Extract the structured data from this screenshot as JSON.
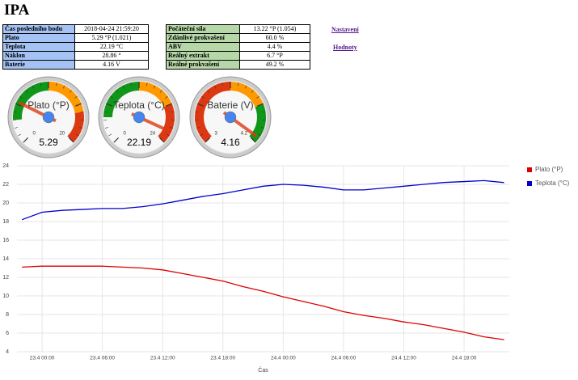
{
  "header": {
    "title": "IPA"
  },
  "tables": [
    {
      "rows": [
        [
          "Čas posledního bodu",
          "2018-04-24 21:59:20"
        ],
        [
          "Plato",
          "5.29 °P (1.021)"
        ],
        [
          "Teplota",
          "22.19 °C"
        ],
        [
          "Náklon",
          "28.86 °"
        ],
        [
          "Baterie",
          "4.16 V"
        ]
      ]
    },
    {
      "rows": [
        [
          "Počáteční síla",
          "13.22 °P (1.054)"
        ],
        [
          "Zdánlivé prokvašení",
          "60.0 %"
        ],
        [
          "ABV",
          "4.4 %"
        ],
        [
          "Reálný extrakt",
          "6.7 °P"
        ],
        [
          "Reálné prokvašení",
          "49.2 %"
        ]
      ]
    }
  ],
  "links": [
    "Nastavení",
    "Hodnoty"
  ],
  "gauges": [
    {
      "label": "Plato (°P)",
      "min": 0,
      "max": 20,
      "value": 5.29,
      "green": [
        3,
        10
      ],
      "yellow": [
        10,
        16
      ],
      "red": [
        16,
        20
      ]
    },
    {
      "label": "Teplota (°C)",
      "min": 0,
      "max": 24,
      "value": 22.19,
      "green": [
        4,
        12
      ],
      "yellow": [
        12,
        18
      ],
      "red": [
        18,
        24
      ]
    },
    {
      "label": "Baterie (V)",
      "min": 3,
      "max": 4.2,
      "value": 4.16,
      "red": [
        3,
        3.6
      ],
      "yellow": [
        3.6,
        3.9
      ],
      "green": [
        3.9,
        4.2
      ]
    }
  ],
  "chart_data": {
    "type": "line",
    "x_label": "Čas",
    "x": [
      "22.4 22:00",
      "23.4 00:00",
      "23.4 02:00",
      "23.4 04:00",
      "23.4 06:00",
      "23.4 08:00",
      "23.4 10:00",
      "23.4 12:00",
      "23.4 14:00",
      "23.4 16:00",
      "23.4 18:00",
      "23.4 20:00",
      "23.4 22:00",
      "24.4 00:00",
      "24.4 02:00",
      "24.4 04:00",
      "24.4 06:00",
      "24.4 08:00",
      "24.4 10:00",
      "24.4 12:00",
      "24.4 14:00",
      "24.4 16:00",
      "24.4 18:00",
      "24.4 20:00",
      "24.4 21:59"
    ],
    "series": [
      {
        "name": "Plato (°P)",
        "color": "#dd0000",
        "values": [
          13.1,
          13.2,
          13.2,
          13.2,
          13.2,
          13.1,
          13.0,
          12.8,
          12.4,
          12.0,
          11.6,
          11.0,
          10.5,
          9.9,
          9.4,
          8.9,
          8.3,
          7.9,
          7.6,
          7.2,
          6.9,
          6.5,
          6.1,
          5.6,
          5.29
        ]
      },
      {
        "name": "Teplota (°C)",
        "color": "#0000cc",
        "values": [
          18.2,
          19.0,
          19.2,
          19.3,
          19.4,
          19.4,
          19.6,
          19.9,
          20.3,
          20.7,
          21.0,
          21.4,
          21.8,
          22.0,
          21.9,
          21.7,
          21.4,
          21.4,
          21.6,
          21.8,
          22.0,
          22.2,
          22.3,
          22.4,
          22.19
        ]
      }
    ],
    "xlim": [
      "22.4 21:30",
      "24.4 22:30"
    ],
    "xticks": [
      "23.4 00:00",
      "23.4 06:00",
      "23.4 12:00",
      "23.4 18:00",
      "24.4 00:00",
      "24.4 06:00",
      "24.4 12:00",
      "24.4 18:00"
    ],
    "ylim": [
      4,
      24
    ],
    "yticks": [
      4,
      6,
      8,
      10,
      12,
      14,
      16,
      18,
      20,
      22,
      24
    ],
    "grid": true,
    "legend": "right"
  }
}
